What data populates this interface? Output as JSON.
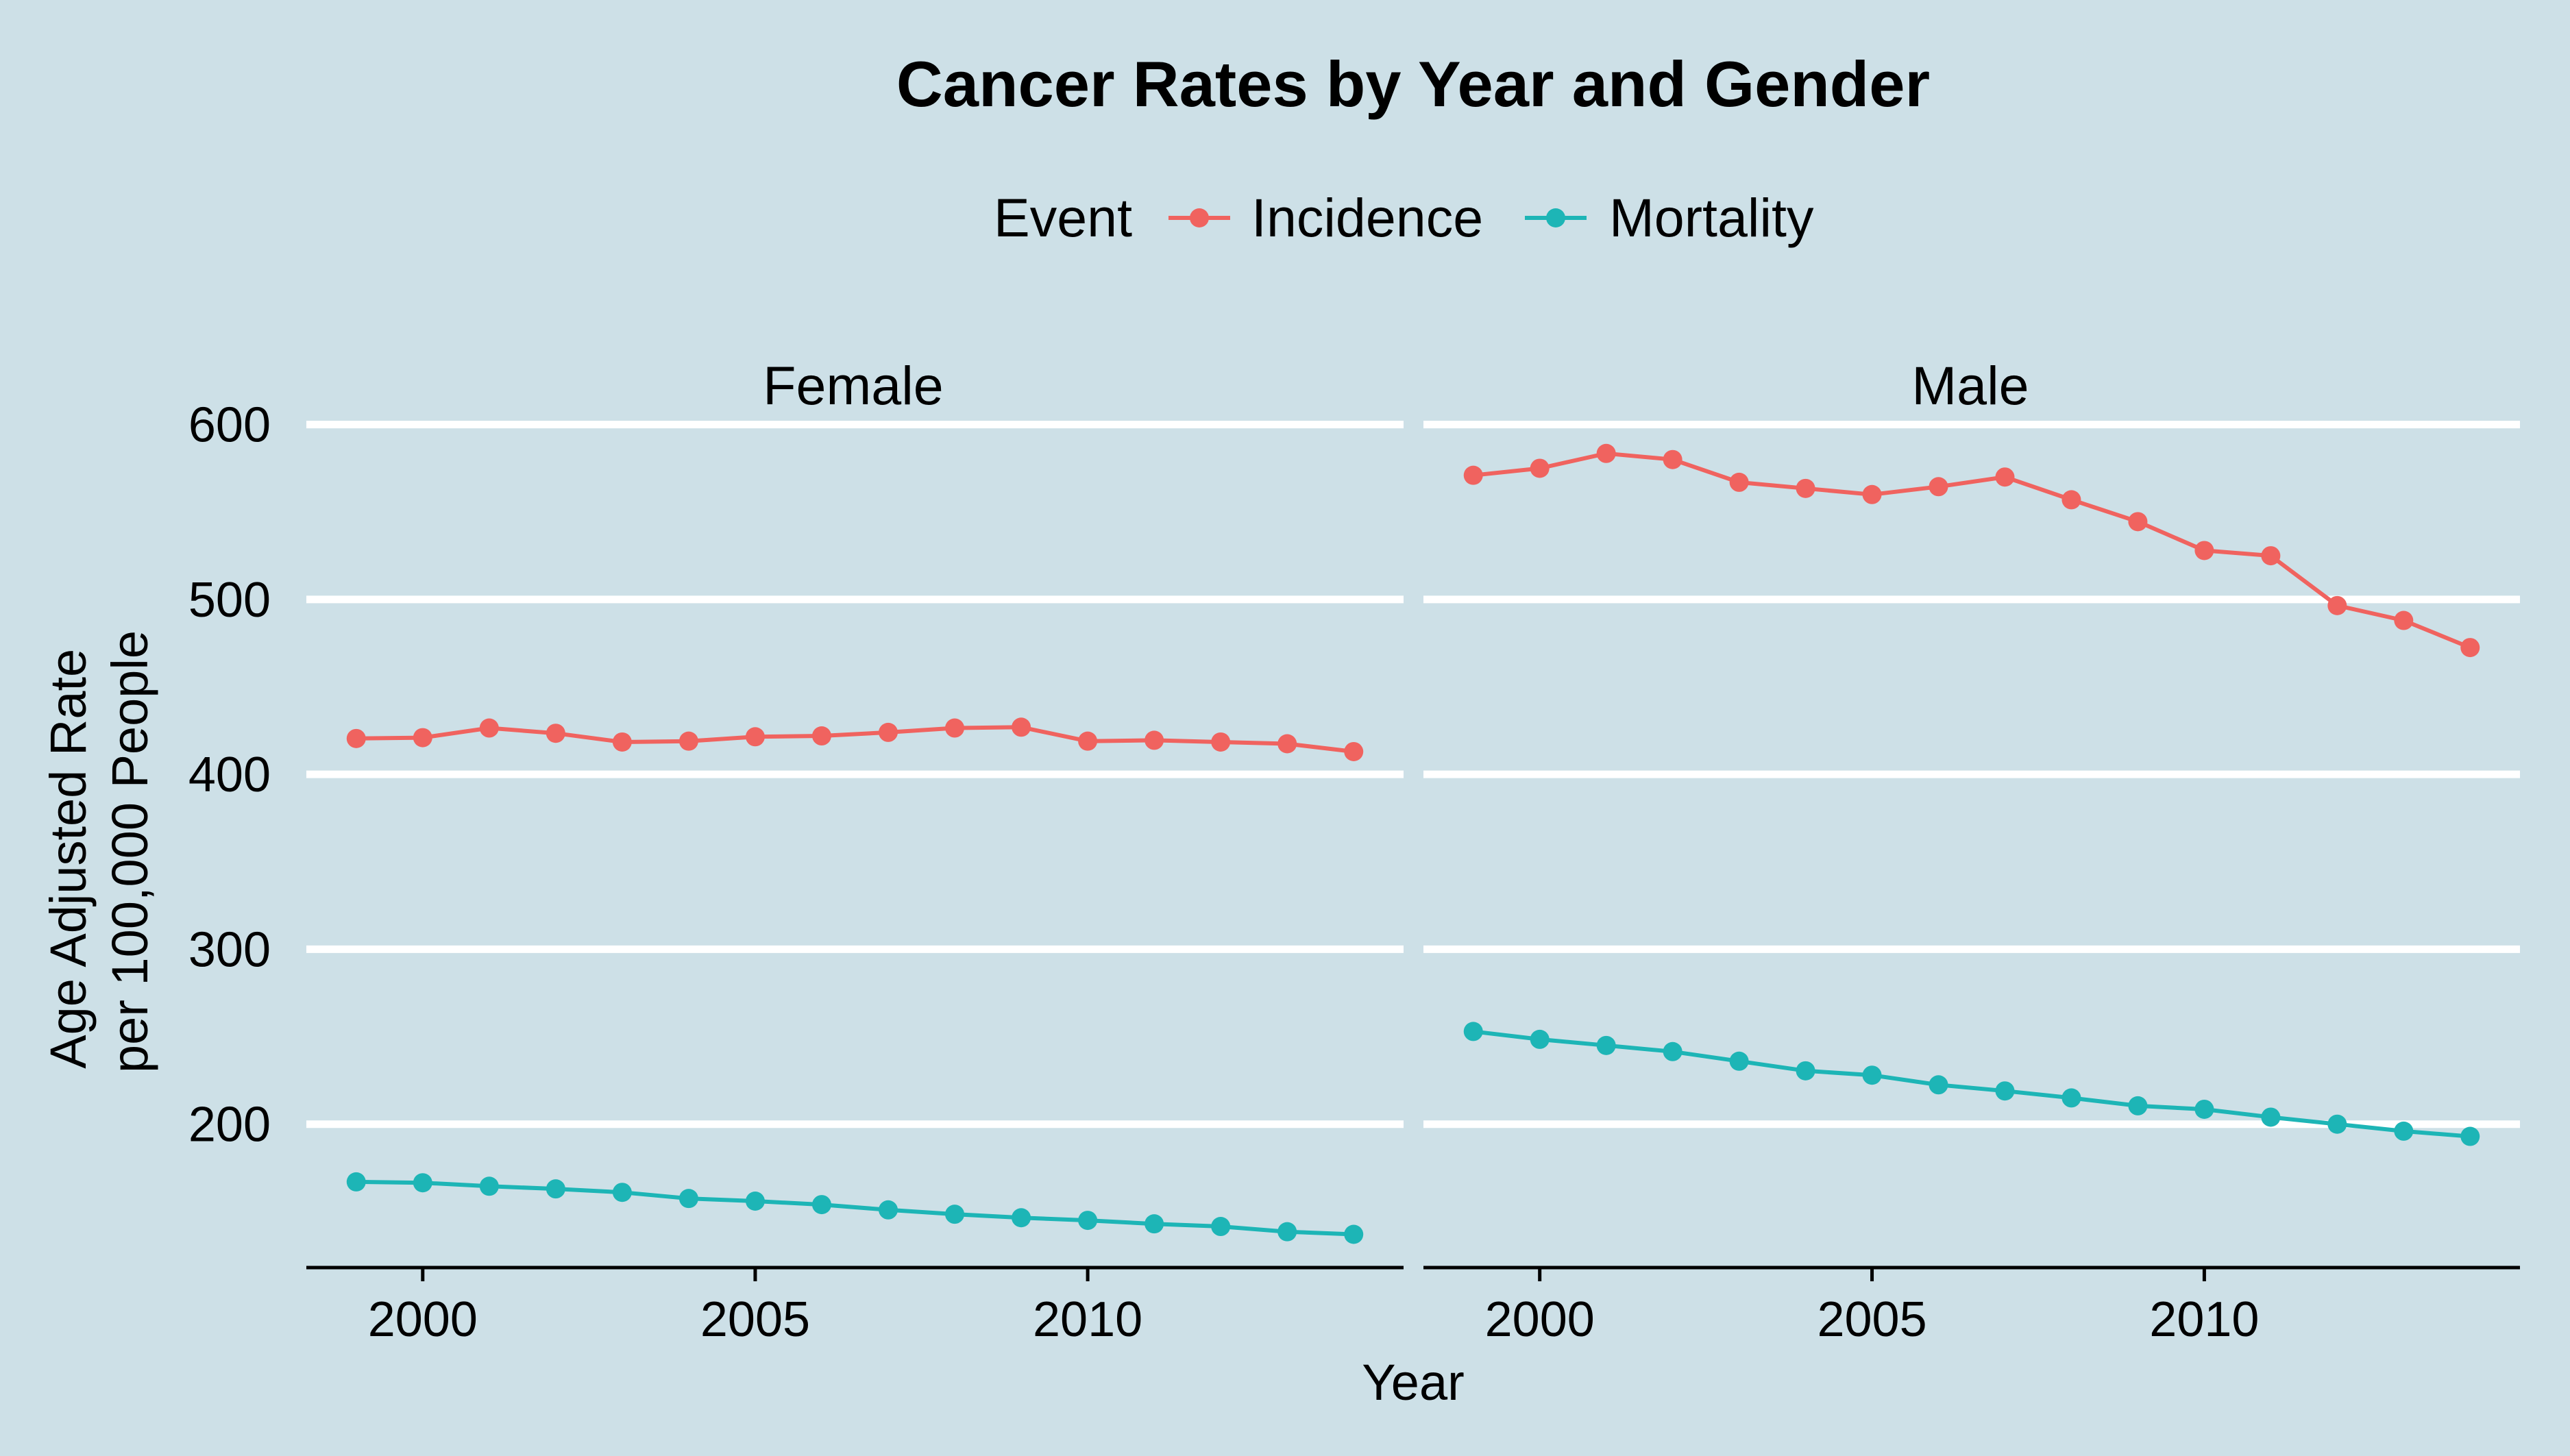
{
  "chart_data": {
    "type": "line",
    "title": "Cancer Rates by Year and Gender",
    "xlabel": "Year",
    "ylabel": [
      "Age Adjusted Rate",
      "per 100,000 People"
    ],
    "legend": {
      "title": "Event",
      "position": "top",
      "entries": [
        {
          "name": "Incidence",
          "color": "#f0635f"
        },
        {
          "name": "Mortality",
          "color": "#1db5b6"
        }
      ]
    },
    "xlim": [
      1998.25,
      2014.75
    ],
    "ylim": [
      118,
      603
    ],
    "x_ticks": [
      "2000",
      "2005",
      "2010"
    ],
    "y_ticks": [
      "600",
      "500",
      "400",
      "300",
      "200"
    ],
    "grid": "horizontal",
    "x": [
      1999,
      2000,
      2001,
      2002,
      2003,
      2004,
      2005,
      2006,
      2007,
      2008,
      2009,
      2010,
      2011,
      2012,
      2013,
      2014
    ],
    "panels": [
      {
        "label": "Female",
        "series": [
          {
            "name": "Incidence",
            "values": [
              420.5,
              421,
              426.5,
              423.5,
              418.5,
              419,
              421.5,
              422,
              424,
              426.5,
              427,
              419,
              419.5,
              418.5,
              417.5,
              413
            ]
          },
          {
            "name": "Mortality",
            "values": [
              167,
              166.5,
              164.5,
              163,
              161,
              157.5,
              156,
              154,
              151,
              148.5,
              146.5,
              145,
              143,
              141.5,
              138.5,
              137
            ]
          }
        ]
      },
      {
        "label": "Male",
        "series": [
          {
            "name": "Incidence",
            "values": [
              571,
              575,
              583.5,
              580,
              567,
              563.5,
              560,
              564.5,
              570,
              557,
              544.5,
              528,
              525,
              496.5,
              488,
              472.5
            ]
          },
          {
            "name": "Mortality",
            "values": [
              253,
              248.5,
              245,
              241.5,
              236,
              230.5,
              228,
              222.5,
              219,
              215,
              210.5,
              208.5,
              204,
              200,
              196,
              193
            ]
          }
        ]
      }
    ]
  }
}
